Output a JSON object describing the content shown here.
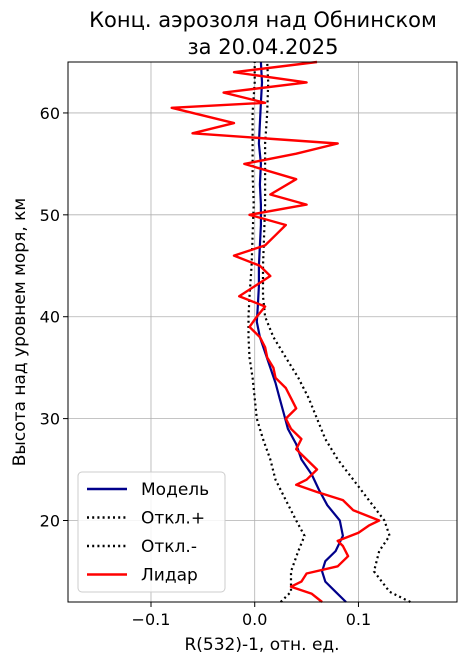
{
  "chart_data": {
    "type": "line",
    "title_line1": "Конц. аэрозоля над Обнинском",
    "title_line2": "за 20.04.2025",
    "xlabel": "R(532)-1, отн. ед.",
    "ylabel": "Высота над уровнем моря, км",
    "xlim": [
      -0.18,
      0.195
    ],
    "ylim": [
      12,
      65
    ],
    "xticks": [
      -0.1,
      0.0,
      0.1
    ],
    "xtick_labels": [
      "−0.1",
      "0.0",
      "0.1"
    ],
    "yticks": [
      20,
      30,
      40,
      50,
      60
    ],
    "yticks_labels": [
      "20",
      "30",
      "40",
      "50",
      "60"
    ],
    "grid": true,
    "legend_position": "lower-left",
    "colors": {
      "model": "#00008b",
      "lidar": "#ff0000",
      "deviation": "#000000"
    },
    "series": [
      {
        "name": "Модель",
        "style": "solid",
        "color": "#00008b",
        "points": [
          [
            0.088,
            12.0
          ],
          [
            0.078,
            13.0
          ],
          [
            0.068,
            14.0
          ],
          [
            0.065,
            15.0
          ],
          [
            0.068,
            16.0
          ],
          [
            0.078,
            17.0
          ],
          [
            0.085,
            18.5
          ],
          [
            0.082,
            20.0
          ],
          [
            0.07,
            21.5
          ],
          [
            0.062,
            23.0
          ],
          [
            0.055,
            24.5
          ],
          [
            0.045,
            26.0
          ],
          [
            0.04,
            27.5
          ],
          [
            0.032,
            29.0
          ],
          [
            0.028,
            30.5
          ],
          [
            0.024,
            32.0
          ],
          [
            0.02,
            33.5
          ],
          [
            0.015,
            35.0
          ],
          [
            0.01,
            36.5
          ],
          [
            0.005,
            38.0
          ],
          [
            0.002,
            39.5
          ],
          [
            0.003,
            41.0
          ],
          [
            0.004,
            43.0
          ],
          [
            0.004,
            45.0
          ],
          [
            0.005,
            47.0
          ],
          [
            0.006,
            49.0
          ],
          [
            0.006,
            51.0
          ],
          [
            0.005,
            53.0
          ],
          [
            0.006,
            55.0
          ],
          [
            0.004,
            57.0
          ],
          [
            0.005,
            59.0
          ],
          [
            0.006,
            61.0
          ],
          [
            0.007,
            63.0
          ],
          [
            0.006,
            65.0
          ]
        ]
      },
      {
        "name": "Откл.+",
        "style": "dotted",
        "color": "#000000",
        "points": [
          [
            0.15,
            12.0
          ],
          [
            0.13,
            13.0
          ],
          [
            0.115,
            15.0
          ],
          [
            0.12,
            17.0
          ],
          [
            0.13,
            18.5
          ],
          [
            0.125,
            20.0
          ],
          [
            0.11,
            22.0
          ],
          [
            0.095,
            24.0
          ],
          [
            0.08,
            26.0
          ],
          [
            0.068,
            28.0
          ],
          [
            0.06,
            30.0
          ],
          [
            0.052,
            32.0
          ],
          [
            0.042,
            34.0
          ],
          [
            0.03,
            36.0
          ],
          [
            0.018,
            38.0
          ],
          [
            0.01,
            40.0
          ],
          [
            0.008,
            42.0
          ],
          [
            0.008,
            45.0
          ],
          [
            0.009,
            48.0
          ],
          [
            0.01,
            51.0
          ],
          [
            0.01,
            54.0
          ],
          [
            0.01,
            57.0
          ],
          [
            0.012,
            60.0
          ],
          [
            0.013,
            63.0
          ],
          [
            0.012,
            65.0
          ]
        ]
      },
      {
        "name": "Откл.-",
        "style": "dotted",
        "color": "#000000",
        "points": [
          [
            0.025,
            12.0
          ],
          [
            0.035,
            13.0
          ],
          [
            0.035,
            15.0
          ],
          [
            0.042,
            17.0
          ],
          [
            0.048,
            18.5
          ],
          [
            0.04,
            20.0
          ],
          [
            0.03,
            22.0
          ],
          [
            0.02,
            24.0
          ],
          [
            0.015,
            26.0
          ],
          [
            0.008,
            28.0
          ],
          [
            0.002,
            30.0
          ],
          [
            0.0,
            32.0
          ],
          [
            -0.002,
            34.0
          ],
          [
            -0.005,
            36.0
          ],
          [
            -0.006,
            38.0
          ],
          [
            -0.006,
            40.0
          ],
          [
            -0.005,
            42.0
          ],
          [
            -0.003,
            45.0
          ],
          [
            -0.002,
            48.0
          ],
          [
            -0.001,
            51.0
          ],
          [
            -0.002,
            54.0
          ],
          [
            -0.002,
            57.0
          ],
          [
            -0.002,
            60.0
          ],
          [
            0.0,
            63.0
          ],
          [
            0.0,
            65.0
          ]
        ]
      },
      {
        "name": "Лидар",
        "style": "solid",
        "color": "#ff0000",
        "points": [
          [
            0.065,
            12.0
          ],
          [
            0.055,
            12.8
          ],
          [
            0.035,
            13.5
          ],
          [
            0.045,
            14.0
          ],
          [
            0.05,
            14.8
          ],
          [
            0.08,
            15.5
          ],
          [
            0.09,
            16.5
          ],
          [
            0.085,
            17.5
          ],
          [
            0.08,
            18.0
          ],
          [
            0.1,
            18.8
          ],
          [
            0.11,
            19.5
          ],
          [
            0.12,
            20.0
          ],
          [
            0.095,
            21.0
          ],
          [
            0.085,
            22.0
          ],
          [
            0.06,
            22.8
          ],
          [
            0.04,
            23.5
          ],
          [
            0.05,
            24.0
          ],
          [
            0.06,
            25.0
          ],
          [
            0.05,
            26.0
          ],
          [
            0.04,
            27.0
          ],
          [
            0.045,
            28.0
          ],
          [
            0.035,
            29.0
          ],
          [
            0.03,
            30.0
          ],
          [
            0.04,
            31.0
          ],
          [
            0.035,
            32.0
          ],
          [
            0.03,
            33.0
          ],
          [
            0.02,
            34.0
          ],
          [
            0.018,
            35.0
          ],
          [
            0.012,
            36.0
          ],
          [
            0.01,
            37.0
          ],
          [
            0.005,
            38.0
          ],
          [
            -0.005,
            39.0
          ],
          [
            0.002,
            40.0
          ],
          [
            0.01,
            41.0
          ],
          [
            -0.015,
            42.0
          ],
          [
            0.0,
            43.0
          ],
          [
            0.015,
            44.0
          ],
          [
            0.005,
            45.0
          ],
          [
            -0.02,
            46.0
          ],
          [
            0.01,
            47.0
          ],
          [
            0.02,
            48.0
          ],
          [
            0.03,
            49.0
          ],
          [
            -0.005,
            50.0
          ],
          [
            0.05,
            51.0
          ],
          [
            0.015,
            52.0
          ],
          [
            0.04,
            53.5
          ],
          [
            -0.01,
            55.0
          ],
          [
            0.04,
            56.0
          ],
          [
            0.08,
            57.0
          ],
          [
            -0.06,
            58.0
          ],
          [
            -0.02,
            59.0
          ],
          [
            -0.08,
            60.5
          ],
          [
            0.01,
            61.0
          ],
          [
            -0.03,
            62.0
          ],
          [
            0.05,
            63.0
          ],
          [
            -0.02,
            64.0
          ],
          [
            0.06,
            65.0
          ]
        ]
      }
    ],
    "legend": [
      "Модель",
      "Откл.+",
      "Откл.-",
      "Лидар"
    ]
  }
}
